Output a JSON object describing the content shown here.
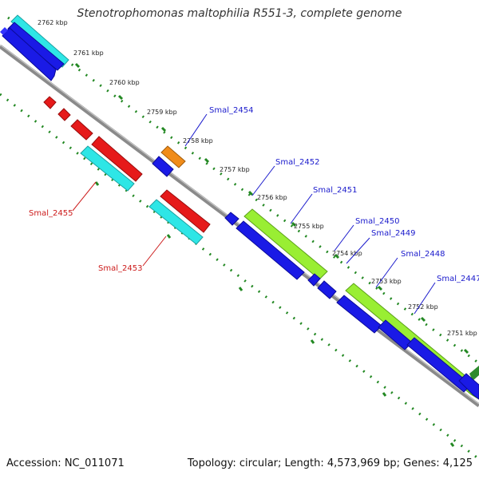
{
  "title": "Stenotrophomonas maltophilia R551-3, complete genome",
  "accession_text": "Accession: NC_011071",
  "stats_text": "Topology: circular; Length: 4,573,969 bp; Genes: 4,125",
  "ruler_labels": [
    "2762 kbp",
    "2761 kbp",
    "2760 kbp",
    "2759 kbp",
    "2758 kbp",
    "2757 kbp",
    "2756 kbp",
    "2755 kbp",
    "2754 kbp",
    "2753 kbp",
    "2752 kbp",
    "2751 kbp"
  ],
  "gene_labels": [
    "Smal_2454",
    "Smal_2452",
    "Smal_2451",
    "Smal_2450",
    "Smal_2449",
    "Smal_2448",
    "Smal_2447",
    "Smal_2455",
    "Smal_2453"
  ],
  "colors": {
    "blue": "#1a1ae6",
    "cyan": "#2ee6e6",
    "red": "#e61a1a",
    "orange": "#f08c1a",
    "lime": "#99ee33",
    "backbone": "#888888",
    "tick": "#228822",
    "label_blue": "#1a1acc",
    "label_red": "#cc1a1a"
  }
}
